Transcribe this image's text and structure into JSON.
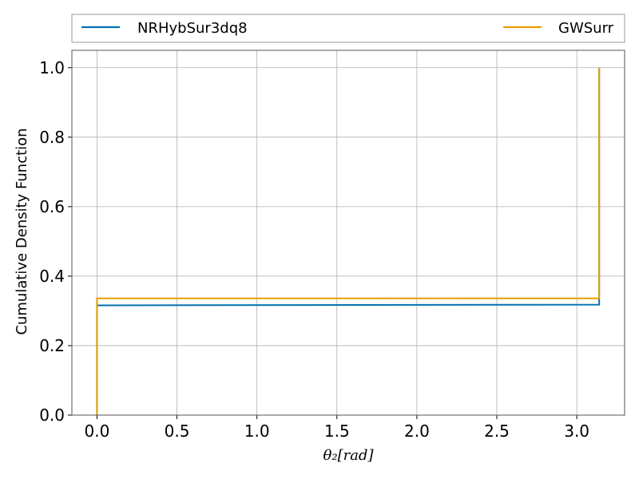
{
  "chart_data": {
    "type": "line",
    "xlabel": "θ₂[rad]",
    "ylabel": "Cumulative Density Function",
    "xlim": [
      -0.157,
      3.299
    ],
    "ylim": [
      0.0,
      1.05
    ],
    "xticks": [
      0.0,
      0.5,
      1.0,
      1.5,
      2.0,
      2.5,
      3.0
    ],
    "xtick_labels": [
      "0.0",
      "0.5",
      "1.0",
      "1.5",
      "2.0",
      "2.5",
      "3.0"
    ],
    "yticks": [
      0.0,
      0.2,
      0.4,
      0.6,
      0.8,
      1.0
    ],
    "ytick_labels": [
      "0.0",
      "0.2",
      "0.4",
      "0.6",
      "0.8",
      "1.0"
    ],
    "grid": true,
    "legend_position": "top, above plot, two columns",
    "series": [
      {
        "name": "NRHybSur3dq8",
        "color": "#0072b2",
        "x": [
          0.0,
          0.0,
          3.14,
          3.14
        ],
        "y": [
          0.0,
          0.316,
          0.318,
          1.0
        ]
      },
      {
        "name": "GWSurr",
        "color": "#e69f00",
        "x": [
          0.0,
          0.0,
          3.14,
          3.14
        ],
        "y": [
          0.0,
          0.336,
          0.336,
          1.0
        ]
      }
    ]
  }
}
